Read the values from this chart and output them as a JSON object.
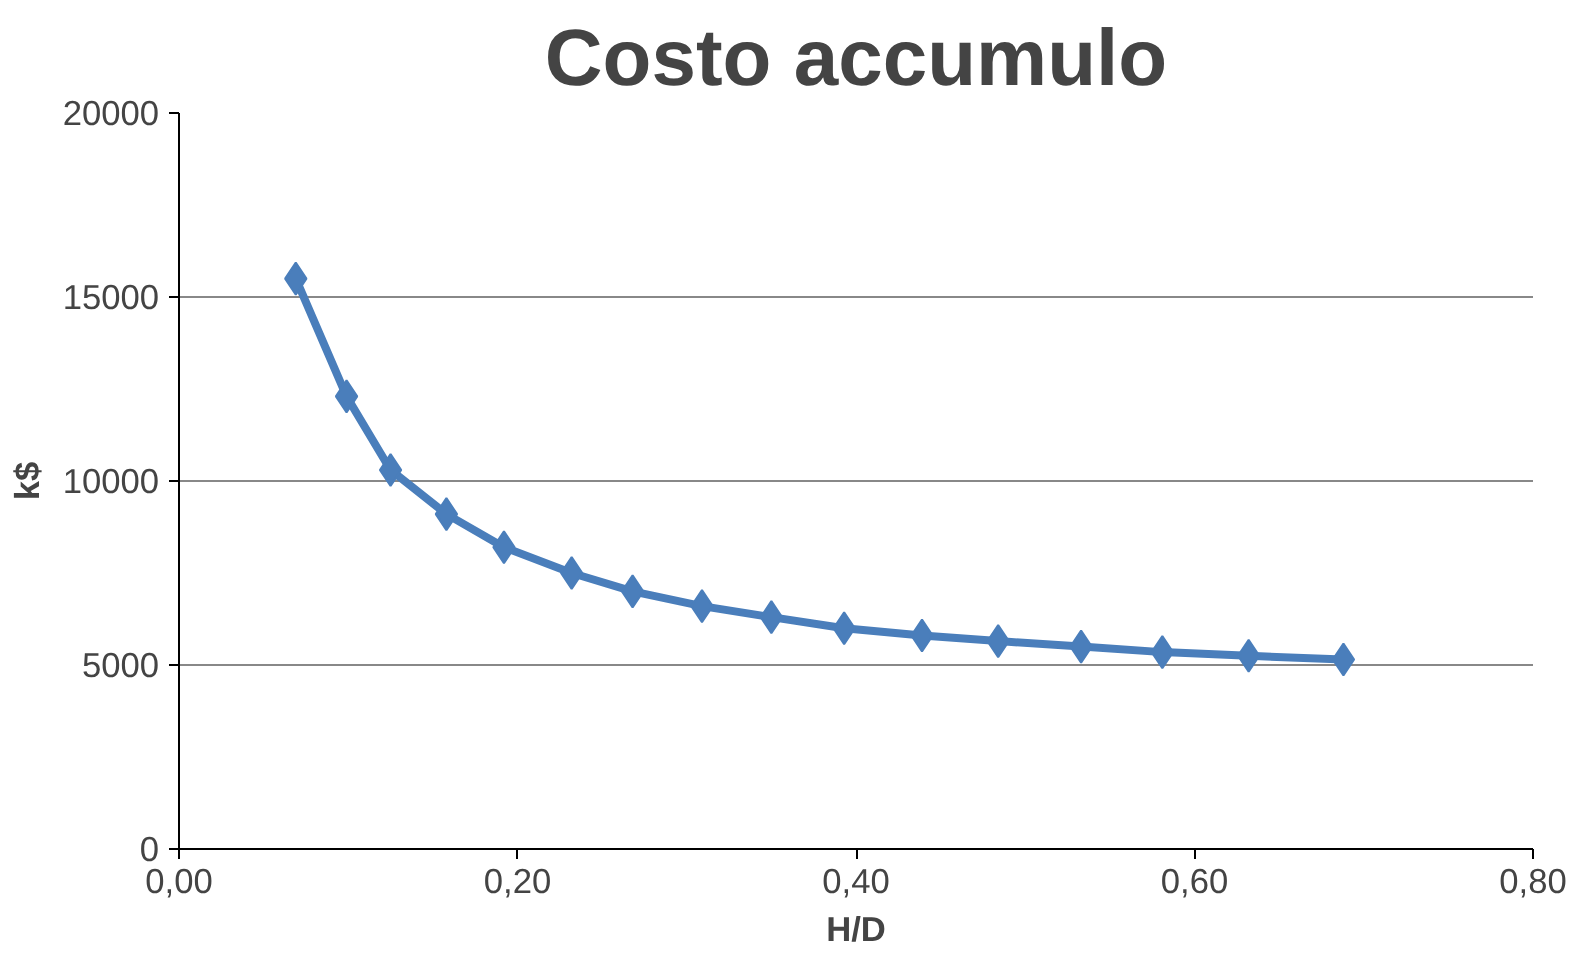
{
  "chart_data": {
    "type": "line",
    "title": "Costo accumulo",
    "xlabel": "H/D",
    "ylabel": "k$",
    "x": [
      0.069,
      0.099,
      0.125,
      0.158,
      0.192,
      0.232,
      0.268,
      0.309,
      0.35,
      0.393,
      0.439,
      0.484,
      0.533,
      0.581,
      0.632,
      0.688
    ],
    "series": [
      {
        "color": "#4a7ebb",
        "values": [
          15500,
          12300,
          10300,
          9100,
          8200,
          7500,
          7000,
          6600,
          6300,
          6000,
          5800,
          5650,
          5500,
          5350,
          5250,
          5150
        ]
      }
    ],
    "xlim": [
      0,
      0.8
    ],
    "xticks": [
      {
        "value": 0,
        "label": "0,00"
      },
      {
        "value": 0.2,
        "label": "0,20"
      },
      {
        "value": 0.4,
        "label": "0,40"
      },
      {
        "value": 0.6,
        "label": "0,60"
      },
      {
        "value": 0.8,
        "label": "0,80"
      }
    ],
    "ylim": [
      0,
      20000
    ],
    "yticks": [
      0,
      5000,
      10000,
      15000,
      20000
    ],
    "grid": "y",
    "marker": "diamond",
    "line_style": "solid"
  }
}
